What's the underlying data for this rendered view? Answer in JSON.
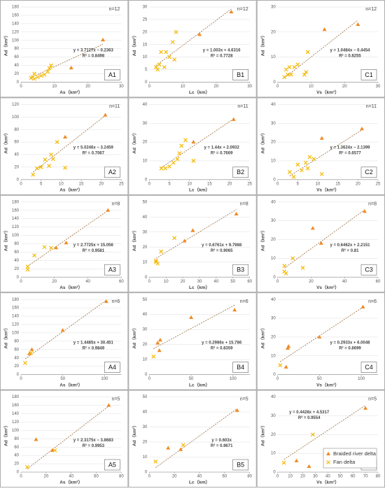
{
  "chart_data": [
    {
      "type": "scatter",
      "label": "A1",
      "n": "n=12",
      "x_label": "As（km²）",
      "y_label": "Ad（km²）",
      "equation": "y = 3.7127x − 0.2363",
      "r2": "R² = 0.8498",
      "trend": {
        "slope": 3.7127,
        "intercept": -0.2363
      },
      "xlim": [
        0,
        30
      ],
      "xticks": [
        0,
        10,
        20,
        30
      ],
      "ylim": [
        0,
        180
      ],
      "yticks": [
        0,
        20,
        40,
        60,
        80,
        100,
        120,
        140,
        160,
        180
      ],
      "series": [
        {
          "name": "Braided river delta",
          "color": "#f08a24",
          "marker": "triangle",
          "x": [
            24.5,
            15
          ],
          "values": [
            101,
            34
          ]
        },
        {
          "name": "Fan delta",
          "color": "#f5b800",
          "marker": "x",
          "x": [
            3,
            3.5,
            4,
            5,
            6,
            7,
            8,
            8.5,
            9,
            4
          ],
          "values": [
            10,
            12,
            20,
            12,
            15,
            18,
            25,
            33,
            40,
            8
          ]
        }
      ]
    },
    {
      "type": "scatter",
      "label": "B1",
      "n": "n=12",
      "x_label": "Lc（km）",
      "y_label": "Ad（km²）",
      "equation": "y = 1.003x + 4.6316",
      "r2": "R² = 0.7728",
      "trend": {
        "slope": 1.003,
        "intercept": 4.6316
      },
      "xlim": [
        0,
        30
      ],
      "xticks": [
        0,
        10,
        20,
        30
      ],
      "ylim": [
        0,
        30
      ],
      "yticks": [
        0,
        5,
        10,
        15,
        20,
        25,
        30
      ],
      "series": [
        {
          "name": "Braided river delta",
          "color": "#f08a24",
          "marker": "triangle",
          "x": [
            24.5,
            15
          ],
          "values": [
            28,
            19
          ]
        },
        {
          "name": "Fan delta",
          "color": "#f5b800",
          "marker": "x",
          "x": [
            2,
            3,
            3.5,
            4.5,
            5,
            6,
            7,
            7.5,
            8,
            2.5
          ],
          "values": [
            6,
            7,
            12,
            6,
            12,
            10,
            16,
            9,
            20,
            5
          ]
        }
      ]
    },
    {
      "type": "scatter",
      "label": "C1",
      "n": "n=12",
      "x_label": "Vs（km³）",
      "y_label": "Ad（km²）",
      "equation": "y = 1.0484x − 0.4454",
      "r2": "R² = 0.8255",
      "trend": {
        "slope": 1.0484,
        "intercept": -0.4454
      },
      "xlim": [
        0,
        30
      ],
      "xticks": [
        0,
        10,
        20,
        30
      ],
      "ylim": [
        0,
        30
      ],
      "yticks": [
        0,
        10,
        20,
        30
      ],
      "series": [
        {
          "name": "Braided river delta",
          "color": "#f08a24",
          "marker": "triangle",
          "x": [
            24,
            14
          ],
          "values": [
            23,
            21
          ]
        },
        {
          "name": "Fan delta",
          "color": "#f5b800",
          "marker": "x",
          "x": [
            2,
            2.5,
            3,
            3.5,
            4,
            5,
            6,
            8,
            8.5,
            9
          ],
          "values": [
            2,
            5,
            3,
            6,
            3,
            6,
            7,
            3,
            4,
            12
          ]
        }
      ]
    },
    {
      "type": "scatter",
      "label": "A2",
      "n": "n=11",
      "x_label": "As（km²）",
      "y_label": "Ad（km²）",
      "equation": "y = 5.0246x − 3.2459",
      "r2": "R² = 0.7067",
      "trend": {
        "slope": 5.0246,
        "intercept": -3.2459
      },
      "xlim": [
        0,
        25
      ],
      "xticks": [
        0,
        5,
        10,
        15,
        20,
        25
      ],
      "ylim": [
        0,
        120
      ],
      "yticks": [
        0,
        20,
        40,
        60,
        80,
        100,
        120
      ],
      "series": [
        {
          "name": "Braided river delta",
          "color": "#f08a24",
          "marker": "triangle",
          "x": [
            21,
            11
          ],
          "values": [
            103,
            68
          ]
        },
        {
          "name": "Fan delta",
          "color": "#f5b800",
          "marker": "x",
          "x": [
            3,
            4,
            5,
            6,
            7,
            7.5,
            8,
            9,
            11
          ],
          "values": [
            8,
            18,
            20,
            32,
            22,
            40,
            33,
            60,
            19
          ]
        }
      ]
    },
    {
      "type": "scatter",
      "label": "B2",
      "n": "n=11",
      "x_label": "Lc（km）",
      "y_label": "Ad（km²）",
      "equation": "y = 1.44x + 2.0932",
      "r2": "R² = 0.7669",
      "trend": {
        "slope": 1.44,
        "intercept": 2.0932
      },
      "xlim": [
        0,
        25
      ],
      "xticks": [
        0,
        5,
        10,
        15,
        20,
        25
      ],
      "ylim": [
        0,
        40
      ],
      "yticks": [
        0,
        10,
        20,
        30,
        40
      ],
      "series": [
        {
          "name": "Braided river delta",
          "color": "#f08a24",
          "marker": "triangle",
          "x": [
            21,
            11
          ],
          "values": [
            32,
            20
          ]
        },
        {
          "name": "Fan delta",
          "color": "#f5b800",
          "marker": "x",
          "x": [
            3,
            4,
            5,
            6,
            7,
            7.5,
            8,
            9,
            11
          ],
          "values": [
            6,
            6,
            7,
            9,
            11,
            14,
            18,
            21,
            10
          ]
        }
      ]
    },
    {
      "type": "scatter",
      "label": "C2",
      "n": "n=11",
      "x_label": "Vs（km³）",
      "y_label": "Ad（km²）",
      "equation": "y = 1.3624x − 2.1399",
      "r2": "R² = 0.6577",
      "trend": {
        "slope": 1.3624,
        "intercept": -2.1399
      },
      "xlim": [
        0,
        25
      ],
      "xticks": [
        0,
        5,
        10,
        15,
        20,
        25
      ],
      "ylim": [
        0,
        40
      ],
      "yticks": [
        0,
        10,
        20,
        30,
        40
      ],
      "series": [
        {
          "name": "Braided river delta",
          "color": "#f08a24",
          "marker": "triangle",
          "x": [
            21,
            11
          ],
          "values": [
            27,
            22
          ]
        },
        {
          "name": "Fan delta",
          "color": "#f5b800",
          "marker": "x",
          "x": [
            3,
            4,
            5,
            6,
            7,
            7.5,
            8,
            9,
            11
          ],
          "values": [
            4,
            1.5,
            8,
            5,
            9,
            6,
            12,
            11,
            3
          ]
        }
      ]
    },
    {
      "type": "scatter",
      "label": "A3",
      "n": "n=8",
      "x_label": "As（km²）",
      "y_label": "Ad（km²）",
      "equation": "y = 2.7725x + 15.056",
      "r2": "R² = 0.9581",
      "trend": {
        "slope": 2.7725,
        "intercept": 15.056
      },
      "xlim": [
        0,
        60
      ],
      "xticks": [
        0,
        20,
        40,
        60
      ],
      "ylim": [
        0,
        180
      ],
      "yticks": [
        0,
        20,
        40,
        60,
        80,
        100,
        120,
        140,
        160,
        180
      ],
      "series": [
        {
          "name": "Braided river delta",
          "color": "#f08a24",
          "marker": "triangle",
          "x": [
            52,
            27,
            21
          ],
          "values": [
            160,
            82,
            70
          ]
        },
        {
          "name": "Fan delta",
          "color": "#f5b800",
          "marker": "x",
          "x": [
            4,
            4,
            8,
            14,
            18
          ],
          "values": [
            25,
            18,
            52,
            72,
            70
          ]
        }
      ]
    },
    {
      "type": "scatter",
      "label": "B3",
      "n": "n=8",
      "x_label": "Lc（km）",
      "y_label": "Ad（km²）",
      "equation": "y = 0.6761x + 9.7988",
      "r2": "R² = 0.9065",
      "trend": {
        "slope": 0.6761,
        "intercept": 9.7988
      },
      "xlim": [
        0,
        60
      ],
      "xticks": [
        0,
        10,
        20,
        30,
        40,
        50,
        60
      ],
      "ylim": [
        0,
        50
      ],
      "yticks": [
        0,
        10,
        20,
        30,
        40,
        50
      ],
      "series": [
        {
          "name": "Braided river delta",
          "color": "#f08a24",
          "marker": "triangle",
          "x": [
            52,
            26,
            21
          ],
          "values": [
            42,
            31,
            24
          ]
        },
        {
          "name": "Fan delta",
          "color": "#f5b800",
          "marker": "x",
          "x": [
            4,
            5,
            7,
            15,
            4
          ],
          "values": [
            10,
            9,
            17,
            26,
            11
          ]
        }
      ]
    },
    {
      "type": "scatter",
      "label": "C3",
      "n": "n=8",
      "x_label": "Vs（km³）",
      "y_label": "Ad（km²）",
      "equation": "y = 0.6462x + 2.2151",
      "r2": "R² = 0.81",
      "trend": {
        "slope": 0.6462,
        "intercept": 2.2151
      },
      "xlim": [
        0,
        60
      ],
      "xticks": [
        0,
        20,
        40,
        60
      ],
      "ylim": [
        0,
        40
      ],
      "yticks": [
        0,
        10,
        20,
        30,
        40
      ],
      "series": [
        {
          "name": "Braided river delta",
          "color": "#f08a24",
          "marker": "triangle",
          "x": [
            52,
            26,
            21
          ],
          "values": [
            35,
            18,
            26
          ]
        },
        {
          "name": "Fan delta",
          "color": "#f5b800",
          "marker": "x",
          "x": [
            4,
            4,
            5,
            9,
            15
          ],
          "values": [
            6,
            3,
            2,
            10,
            5
          ]
        }
      ]
    },
    {
      "type": "scatter",
      "label": "A4",
      "n": "n=6",
      "x_label": "As（km²）",
      "y_label": "Ad（km²）",
      "equation": "y = 1.4485x + 30.451",
      "r2": "R² = 0.9849",
      "trend": {
        "slope": 1.4485,
        "intercept": 30.451
      },
      "xlim": [
        0,
        120
      ],
      "xticks": [
        0,
        50,
        100
      ],
      "ylim": [
        0,
        180
      ],
      "yticks": [
        0,
        20,
        40,
        60,
        80,
        100,
        120,
        140,
        160,
        180
      ],
      "series": [
        {
          "name": "Braided river delta",
          "color": "#f08a24",
          "marker": "triangle",
          "x": [
            102,
            50,
            13,
            10
          ],
          "values": [
            175,
            106,
            60,
            50
          ]
        },
        {
          "name": "Fan delta",
          "color": "#f5b800",
          "marker": "x",
          "x": [
            5,
            12
          ],
          "values": [
            28,
            52
          ]
        }
      ]
    },
    {
      "type": "scatter",
      "label": "B4",
      "n": "n=6",
      "x_label": "Lc（km）",
      "y_label": "Ad（km²）",
      "equation": "y = 0.2986x + 15.786",
      "r2": "R² = 0.8359",
      "trend": {
        "slope": 0.2986,
        "intercept": 15.786
      },
      "xlim": [
        0,
        120
      ],
      "xticks": [
        0,
        50,
        100
      ],
      "ylim": [
        0,
        50
      ],
      "yticks": [
        0,
        10,
        20,
        30,
        40,
        50
      ],
      "series": [
        {
          "name": "Braided river delta",
          "color": "#f08a24",
          "marker": "triangle",
          "x": [
            102,
            50,
            13,
            12,
            10
          ],
          "values": [
            43,
            38,
            23,
            16,
            21
          ]
        },
        {
          "name": "Fan delta",
          "color": "#f5b800",
          "marker": "x",
          "x": [
            5
          ],
          "values": [
            12
          ]
        }
      ]
    },
    {
      "type": "scatter",
      "label": "C4",
      "n": "n=6",
      "x_label": "Vs（km³）",
      "y_label": "Ad（km²）",
      "equation": "y = 0.2933x + 6.0048",
      "r2": "R² = 0.8699",
      "trend": {
        "slope": 0.2933,
        "intercept": 6.0048
      },
      "xlim": [
        0,
        120
      ],
      "xticks": [
        0,
        50,
        100
      ],
      "ylim": [
        0,
        40
      ],
      "yticks": [
        0,
        10,
        20,
        30,
        40
      ],
      "series": [
        {
          "name": "Braided river delta",
          "color": "#f08a24",
          "marker": "triangle",
          "x": [
            102,
            50,
            13,
            12,
            10
          ],
          "values": [
            36,
            20,
            15,
            14,
            4
          ]
        },
        {
          "name": "Fan delta",
          "color": "#f5b800",
          "marker": "x",
          "x": [
            3
          ],
          "values": [
            5
          ]
        }
      ]
    },
    {
      "type": "scatter",
      "label": "A5",
      "n": "n=5",
      "x_label": "As（km²）",
      "y_label": "Ad（km²）",
      "equation": "y = 2.3175x − 3.8683",
      "r2": "R² = 0.9953",
      "trend": {
        "slope": 2.3175,
        "intercept": -3.8683
      },
      "xlim": [
        0,
        80
      ],
      "xticks": [
        0,
        20,
        40,
        60,
        80
      ],
      "ylim": [
        0,
        180
      ],
      "yticks": [
        0,
        20,
        40,
        60,
        80,
        100,
        120,
        140,
        160,
        180
      ],
      "series": [
        {
          "name": "Braided river delta",
          "color": "#f08a24",
          "marker": "triangle",
          "x": [
            70,
            25,
            12
          ],
          "values": [
            160,
            52,
            78
          ]
        },
        {
          "name": "Fan delta",
          "color": "#f5b800",
          "marker": "x",
          "x": [
            5,
            27
          ],
          "values": [
            12,
            52
          ]
        }
      ]
    },
    {
      "type": "scatter",
      "label": "B5",
      "n": "n=5",
      "x_label": "Lc（km）",
      "y_label": "Ad（km²）",
      "equation": "y = 0.603x",
      "r2": "R² = 0.9671",
      "trend": {
        "slope": 0.603,
        "intercept": 0
      },
      "xlim": [
        0,
        80
      ],
      "xticks": [
        0,
        20,
        40,
        60,
        80
      ],
      "ylim": [
        0,
        50
      ],
      "yticks": [
        0,
        10,
        20,
        30,
        40,
        50
      ],
      "series": [
        {
          "name": "Braided river delta",
          "color": "#f08a24",
          "marker": "triangle",
          "x": [
            70,
            25,
            15
          ],
          "values": [
            41,
            15,
            16
          ]
        },
        {
          "name": "Fan delta",
          "color": "#f5b800",
          "marker": "x",
          "x": [
            5,
            27
          ],
          "values": [
            7,
            18
          ]
        }
      ]
    },
    {
      "type": "scatter",
      "label": "C5",
      "n": "n=5",
      "x_label": "Vs（km³）",
      "y_label": "Ad（km²）",
      "equation": "y = 0.4428x + 4.5317",
      "r2": "R² = 0.9554",
      "trend": {
        "slope": 0.4428,
        "intercept": 4.5317
      },
      "xlim": [
        0,
        80
      ],
      "xticks": [
        0,
        10,
        20,
        30,
        40,
        50,
        60,
        70,
        80
      ],
      "ylim": [
        0,
        40
      ],
      "yticks": [
        0,
        10,
        20,
        30,
        40
      ],
      "legend": "lower right",
      "series": [
        {
          "name": "Braided river delta",
          "color": "#f08a24",
          "marker": "triangle",
          "x": [
            70,
            25,
            15
          ],
          "values": [
            34,
            3,
            6
          ]
        },
        {
          "name": "Fan delta",
          "color": "#f5b800",
          "marker": "x",
          "x": [
            5,
            28
          ],
          "values": [
            5,
            20
          ]
        }
      ]
    }
  ]
}
